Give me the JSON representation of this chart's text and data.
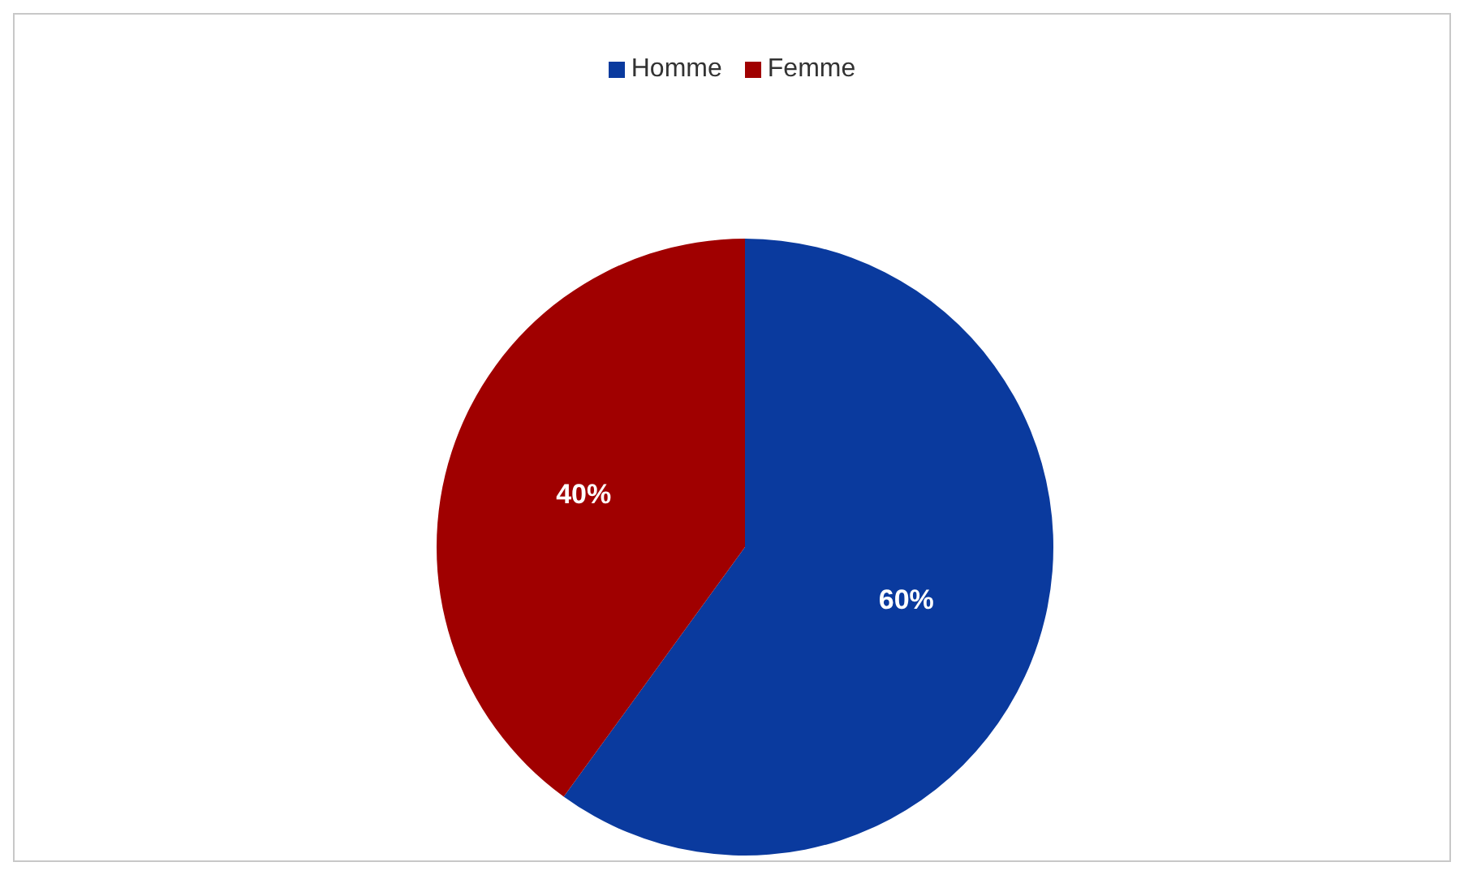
{
  "chart_data": {
    "type": "pie",
    "categories": [
      "Homme",
      "Femme"
    ],
    "values": [
      60,
      40
    ],
    "colors": [
      "#0a3a9e",
      "#a00000"
    ],
    "value_labels": [
      "60%",
      "40%"
    ],
    "legend": "top"
  }
}
